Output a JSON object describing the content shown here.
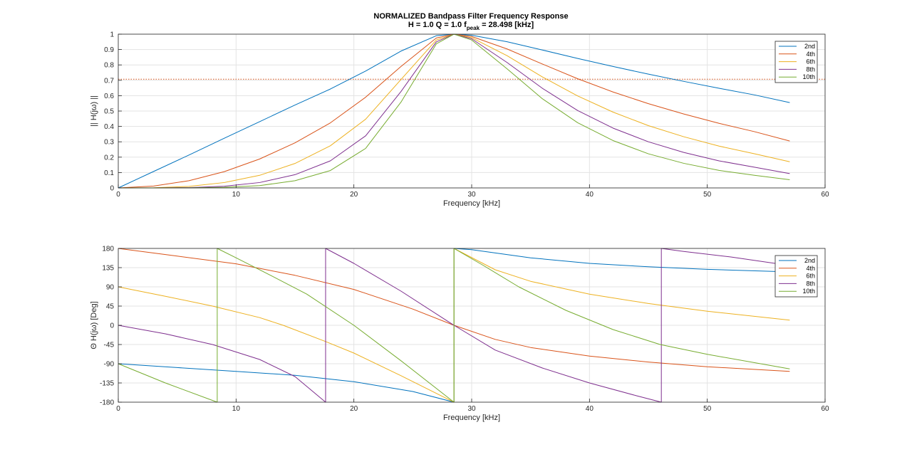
{
  "figure": {
    "title_main": "NORMALIZED Bandpass Filter Frequency Response",
    "title_line2_part1": "H = 1.0   Q = 1.0   f",
    "title_line2_sub": "peak",
    "title_line2_part2": " = 28.498 [kHz]"
  },
  "chart_data": [
    {
      "type": "line",
      "name": "magnitude",
      "xlabel": "Frequency [kHz]",
      "ylabel": "|| H(jω) ||",
      "xlim": [
        0,
        60
      ],
      "ylim": [
        0,
        1
      ],
      "xticks": [
        0,
        10,
        20,
        30,
        40,
        50,
        60
      ],
      "yticks": [
        0,
        0.1,
        0.2,
        0.3,
        0.4,
        0.5,
        0.6,
        0.7,
        0.8,
        0.9,
        1
      ],
      "ytick_labels": [
        "0",
        "0.1",
        "0.2",
        "0.3",
        "0.4",
        "0.5",
        "0.6",
        "0.7",
        "0.8",
        "0.9",
        "1"
      ],
      "grid": true,
      "legend_position": "top-right",
      "x": [
        0,
        3,
        6,
        9,
        12,
        15,
        18,
        21,
        24,
        27,
        28.498,
        30,
        33,
        36,
        39,
        42,
        45,
        48,
        51,
        54,
        57
      ],
      "series": [
        {
          "name": "2nd",
          "color": "#0072BD",
          "values": [
            0,
            0.107,
            0.214,
            0.323,
            0.431,
            0.539,
            0.643,
            0.76,
            0.89,
            0.99,
            1.0,
            0.993,
            0.951,
            0.897,
            0.842,
            0.79,
            0.74,
            0.693,
            0.648,
            0.605,
            0.555
          ]
        },
        {
          "name": "4th",
          "color": "#D95319",
          "values": [
            0,
            0.012,
            0.047,
            0.106,
            0.188,
            0.293,
            0.423,
            0.59,
            0.79,
            0.975,
            1.0,
            0.985,
            0.904,
            0.806,
            0.71,
            0.624,
            0.548,
            0.481,
            0.42,
            0.366,
            0.305
          ]
        },
        {
          "name": "6th",
          "color": "#EDB120",
          "values": [
            0,
            0.001,
            0.01,
            0.035,
            0.082,
            0.159,
            0.274,
            0.447,
            0.705,
            0.962,
            1.0,
            0.977,
            0.86,
            0.722,
            0.598,
            0.493,
            0.405,
            0.333,
            0.272,
            0.222,
            0.17
          ]
        },
        {
          "name": "8th",
          "color": "#7E2F8E",
          "values": [
            0,
            0.0002,
            0.002,
            0.011,
            0.035,
            0.086,
            0.176,
            0.339,
            0.627,
            0.95,
            1.0,
            0.97,
            0.816,
            0.648,
            0.503,
            0.389,
            0.3,
            0.231,
            0.176,
            0.135,
            0.093
          ]
        },
        {
          "name": "10th",
          "color": "#77AC30",
          "values": [
            0,
            2e-05,
            0.0005,
            0.004,
            0.015,
            0.047,
            0.113,
            0.257,
            0.558,
            0.937,
            1.0,
            0.962,
            0.775,
            0.58,
            0.424,
            0.308,
            0.222,
            0.16,
            0.114,
            0.082,
            0.053
          ]
        }
      ],
      "reference_line": {
        "y": 0.7071,
        "color": "#D95319",
        "style": "dotted"
      }
    },
    {
      "type": "line",
      "name": "phase",
      "xlabel": "Frequency [kHz]",
      "ylabel": "Θ H(jω) [Deg]",
      "xlim": [
        0,
        60
      ],
      "ylim": [
        -180,
        180
      ],
      "xticks": [
        0,
        10,
        20,
        30,
        40,
        50,
        60
      ],
      "yticks": [
        -180,
        -135,
        -90,
        -45,
        0,
        45,
        90,
        135,
        180
      ],
      "ytick_labels": [
        "-180",
        "-135",
        "-90",
        "-45",
        "0",
        "45",
        "90",
        "135",
        "180"
      ],
      "grid": true,
      "legend_position": "top-right",
      "series": [
        {
          "name": "2nd",
          "color": "#0072BD",
          "segments": [
            {
              "x": [
                0,
                5,
                10,
                15,
                20,
                25,
                28.498
              ],
              "y": [
                -90,
                -99,
                -108,
                -117,
                -132,
                -155,
                -180
              ]
            },
            {
              "x": [
                28.498,
                30,
                35,
                40,
                45,
                50,
                57
              ],
              "y": [
                180,
                177,
                158,
                145,
                137,
                131,
                125
              ]
            }
          ]
        },
        {
          "name": "4th",
          "color": "#D95319",
          "segments": [
            {
              "x": [
                0,
                5,
                10,
                15,
                20,
                25,
                28.498,
                32,
                35,
                40,
                45,
                50,
                57
              ],
              "y": [
                180,
                162,
                144,
                117,
                84,
                38,
                0,
                -33,
                -52,
                -72,
                -86,
                -97,
                -108
              ]
            }
          ]
        },
        {
          "name": "6th",
          "color": "#EDB120",
          "segments": [
            {
              "x": [
                0,
                4,
                8,
                12,
                14,
                17.6,
                20,
                24,
                28.498
              ],
              "y": [
                90,
                68,
                45,
                18,
                0,
                -38,
                -65,
                -118,
                -180
              ]
            },
            {
              "x": [
                28.498,
                32,
                35,
                40,
                45,
                50,
                57
              ],
              "y": [
                180,
                130,
                103,
                73,
                51,
                33,
                12
              ]
            }
          ]
        },
        {
          "name": "8th",
          "color": "#7E2F8E",
          "segments": [
            {
              "x": [
                0,
                4,
                8,
                12,
                15,
                17.6
              ],
              "y": [
                0,
                -20,
                -45,
                -80,
                -120,
                -180
              ]
            },
            {
              "x": [
                17.6,
                20,
                24,
                28.498,
                32,
                36,
                40,
                44,
                46.1
              ],
              "y": [
                180,
                145,
                80,
                0,
                -58,
                -100,
                -135,
                -165,
                -180
              ]
            },
            {
              "x": [
                46.1,
                48,
                52,
                57
              ],
              "y": [
                180,
                173,
                160,
                140
              ]
            }
          ]
        },
        {
          "name": "10th",
          "color": "#77AC30",
          "segments": [
            {
              "x": [
                0,
                4,
                8.4
              ],
              "y": [
                -90,
                -135,
                -180
              ]
            },
            {
              "x": [
                8.4,
                10,
                13,
                16,
                20,
                24,
                28.498
              ],
              "y": [
                180,
                158,
                116,
                73,
                0,
                -83,
                -180
              ]
            },
            {
              "x": [
                28.498,
                31,
                34,
                38,
                42,
                46,
                50,
                57
              ],
              "y": [
                180,
                140,
                90,
                35,
                -10,
                -45,
                -68,
                -102
              ]
            }
          ]
        }
      ]
    }
  ]
}
